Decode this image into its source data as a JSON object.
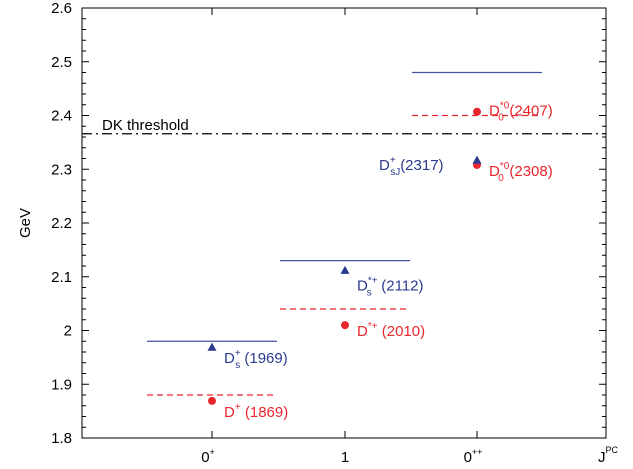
{
  "chart_data": {
    "type": "scatter",
    "ylabel": "GeV",
    "xlabel": "J^PC",
    "xlabel_main": "J",
    "xlabel_sup": "PC",
    "ylim": [
      1.8,
      2.6
    ],
    "y_ticks": [
      "1.8",
      "1.9",
      "2",
      "2.1",
      "2.2",
      "2.3",
      "2.4",
      "2.5",
      "2.6"
    ],
    "x_categories": [
      {
        "main": "0",
        "sup": "+"
      },
      {
        "main": "1",
        "sup": ""
      },
      {
        "main": "0",
        "sup": "++"
      }
    ],
    "levels": [
      {
        "category": 0,
        "y": 1.88,
        "style": "dashed",
        "color": "#e8262d"
      },
      {
        "category": 0,
        "y": 1.98,
        "style": "solid",
        "color": "#4453a3"
      },
      {
        "category": 1,
        "y": 2.04,
        "style": "dashed",
        "color": "#e8262d"
      },
      {
        "category": 1,
        "y": 2.13,
        "style": "solid",
        "color": "#4453a3"
      },
      {
        "category": 2,
        "y": 2.4,
        "style": "dashed",
        "color": "#e8262d"
      },
      {
        "category": 2,
        "y": 2.48,
        "style": "solid",
        "color": "#4453a3"
      }
    ],
    "points": [
      {
        "x": 0,
        "y": 1.869,
        "marker": "circle",
        "color": "#e8262d",
        "label_main": "D",
        "label_sub": "",
        "label_sup": "+",
        "label_rest": " (1869)",
        "label_dx": 12,
        "label_dy": 16
      },
      {
        "x": 0,
        "y": 1.969,
        "marker": "triangle",
        "color": "#2b3a8f",
        "label_main": "D",
        "label_sub": "s",
        "label_sup": "+",
        "label_rest": " (1969)",
        "label_dx": 12,
        "label_dy": 16
      },
      {
        "x": 1,
        "y": 2.01,
        "marker": "circle",
        "color": "#e8262d",
        "label_main": "D",
        "label_sub": "",
        "label_sup": "*+",
        "label_rest": " (2010)",
        "label_dx": 12,
        "label_dy": 11
      },
      {
        "x": 1,
        "y": 2.112,
        "marker": "triangle",
        "color": "#2b3a8f",
        "label_main": "D",
        "label_sub": "s",
        "label_sup": "*+",
        "label_rest": " (2112)",
        "label_dx": 12,
        "label_dy": 20
      },
      {
        "x": 2,
        "y": 2.308,
        "marker": "circle",
        "color": "#e8262d",
        "label_main": "D",
        "label_sub": "0",
        "label_sup": "*0",
        "label_rest": "(2308)",
        "label_dx": 12,
        "label_dy": 11
      },
      {
        "x": 2,
        "y": 2.317,
        "marker": "triangle",
        "color": "#2b3a8f",
        "label_main": "D",
        "label_sub": "sJ",
        "label_sup": "+",
        "label_rest": "(2317)",
        "label_dx": -98,
        "label_dy": 10
      },
      {
        "x": 2,
        "y": 2.407,
        "marker": "circle",
        "color": "#e8262d",
        "label_main": "D",
        "label_sub": "0",
        "label_sup": "*0",
        "label_rest": "(2407)",
        "label_dx": 12,
        "label_dy": 4
      }
    ],
    "threshold": {
      "y": 2.366,
      "label": "DK threshold",
      "style": "dashdot",
      "color": "#000000"
    },
    "grid": false
  }
}
